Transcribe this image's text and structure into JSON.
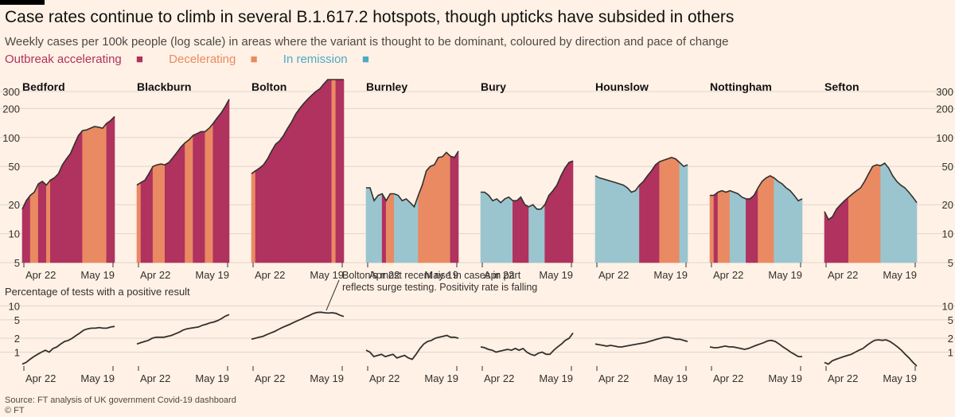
{
  "title": "Case rates continue to climb in several B.1.617.2 hotspots, though upticks have subsided in others",
  "subtitle": "Weekly cases per 100k people (log scale) in areas where the variant is thought to be dominant, coloured by direction and pace of change",
  "legend": [
    {
      "label": "Outbreak accelerating",
      "marker": "■",
      "color": "#b0325f"
    },
    {
      "label": "Decelerating",
      "marker": "■",
      "color": "#e98a63"
    },
    {
      "label": "In remission",
      "marker": "■",
      "color": "#4fa9c8"
    }
  ],
  "colors": {
    "accel": "#b0325f",
    "decel": "#e98a63",
    "remit": "#9ac5cf",
    "line": "#33302e",
    "text": "#33302e"
  },
  "lower_title": "Percentage of tests with a positive result",
  "annotation": [
    "Bolton’s most recent rise in cases in part",
    "reflects surge testing. Positivity rate is falling"
  ],
  "source": "Source: FT analysis of UK government Covid-19 dashboard",
  "credit": "© FT",
  "chart_data": [
    {
      "type": "area",
      "log_scale": true,
      "ylim": [
        5,
        400
      ],
      "yticks": [
        5,
        10,
        20,
        50,
        100,
        200,
        300
      ],
      "x_tick_labels": [
        "Apr 22",
        "May 19"
      ],
      "segments_legend": {
        "A": "Outbreak accelerating",
        "D": "Decelerating",
        "R": "In remission"
      },
      "series": [
        {
          "name": "Bedford",
          "values": [
            18,
            22,
            25,
            27,
            33,
            35,
            32,
            36,
            38,
            42,
            52,
            60,
            68,
            85,
            105,
            118,
            120,
            125,
            130,
            128,
            125,
            140,
            150,
            165
          ],
          "state": "AADDAADAAAAAAAADDDDDDAAA"
        },
        {
          "name": "Blackburn",
          "values": [
            32,
            34,
            36,
            42,
            50,
            52,
            53,
            52,
            55,
            62,
            70,
            80,
            88,
            95,
            105,
            110,
            115,
            115,
            125,
            140,
            160,
            180,
            210,
            250
          ],
          "state": "DAAADDDAAAAADDAAADDAAAAA"
        },
        {
          "name": "Bolton",
          "values": [
            42,
            45,
            48,
            52,
            60,
            72,
            85,
            92,
            105,
            125,
            145,
            175,
            200,
            225,
            250,
            275,
            300,
            320,
            360,
            400,
            400,
            400,
            400,
            400
          ],
          "state": "DAAAAAAAAAAAAAAAAAAADAAD"
        },
        {
          "name": "Burnley",
          "values": [
            30,
            30,
            22,
            25,
            26,
            22,
            26,
            26,
            25,
            22,
            23,
            21,
            19,
            25,
            32,
            45,
            50,
            52,
            62,
            63,
            70,
            64,
            62,
            72
          ],
          "state": "RRRRADDRRRRRRDDDDDDDDAAA"
        },
        {
          "name": "Bury",
          "values": [
            27,
            27,
            25,
            22,
            23,
            21,
            23,
            24,
            22,
            22,
            24,
            20,
            19,
            20,
            18,
            18,
            20,
            25,
            28,
            32,
            40,
            48,
            55,
            57
          ],
          "state": "RRRRRRRRAAAARRRRAAAAAAAD"
        },
        {
          "name": "Hounslow",
          "values": [
            40,
            38,
            37,
            36,
            35,
            34,
            33,
            32,
            30,
            27,
            28,
            32,
            35,
            40,
            45,
            52,
            56,
            58,
            60,
            62,
            60,
            55,
            50,
            52
          ],
          "state": "RRRRRRRRRRRAAAAADDDDDRRR"
        },
        {
          "name": "Nottingham",
          "values": [
            25,
            25,
            27,
            28,
            27,
            28,
            27,
            26,
            24,
            23,
            23,
            25,
            30,
            35,
            38,
            40,
            38,
            35,
            33,
            30,
            28,
            25,
            22,
            23
          ],
          "state": "DADDDRRRRAAADDDDRRRRRRRR"
        },
        {
          "name": "Sefton",
          "values": [
            17,
            14,
            15,
            18,
            20,
            22,
            24,
            26,
            28,
            30,
            35,
            42,
            50,
            52,
            51,
            54,
            48,
            40,
            35,
            32,
            30,
            27,
            24,
            21
          ],
          "state": "AAAAAADDDDDDDDRRRRRRRRRR"
        }
      ]
    },
    {
      "type": "line",
      "log_scale": true,
      "ylim": [
        0.5,
        11
      ],
      "yticks": [
        1,
        2,
        5,
        10
      ],
      "x_tick_labels": [
        "Apr 22",
        "May 19"
      ],
      "series": [
        {
          "name": "Bedford",
          "values": [
            0.55,
            0.6,
            0.7,
            0.8,
            0.9,
            1.0,
            1.1,
            1.0,
            1.2,
            1.3,
            1.5,
            1.7,
            1.8,
            2.0,
            2.3,
            2.6,
            3.0,
            3.2,
            3.3,
            3.3,
            3.4,
            3.3,
            3.3,
            3.5,
            3.6
          ]
        },
        {
          "name": "Blackburn",
          "values": [
            1.5,
            1.6,
            1.7,
            1.8,
            2.0,
            2.1,
            2.1,
            2.1,
            2.2,
            2.3,
            2.5,
            2.7,
            3.0,
            3.2,
            3.3,
            3.4,
            3.5,
            3.8,
            4.0,
            4.3,
            4.5,
            4.8,
            5.3,
            6.0,
            6.5
          ]
        },
        {
          "name": "Bolton",
          "values": [
            1.9,
            2.0,
            2.1,
            2.2,
            2.4,
            2.6,
            2.8,
            3.1,
            3.4,
            3.7,
            4.0,
            4.4,
            4.8,
            5.2,
            5.7,
            6.2,
            6.8,
            7.2,
            7.3,
            7.1,
            7.0,
            7.1,
            6.9,
            6.3,
            5.9
          ]
        },
        {
          "name": "Burnley",
          "values": [
            1.1,
            1.0,
            0.8,
            0.85,
            0.9,
            0.8,
            0.85,
            0.9,
            0.75,
            0.8,
            0.85,
            0.75,
            0.7,
            0.9,
            1.2,
            1.5,
            1.7,
            1.8,
            2.0,
            2.1,
            2.2,
            2.3,
            2.1,
            2.1,
            2.0
          ]
        },
        {
          "name": "Bury",
          "values": [
            1.3,
            1.25,
            1.15,
            1.1,
            1.0,
            1.05,
            1.1,
            1.15,
            1.1,
            1.2,
            1.1,
            1.2,
            1.0,
            0.9,
            0.85,
            0.95,
            1.0,
            0.9,
            0.9,
            1.1,
            1.3,
            1.5,
            1.8,
            2.0,
            2.6
          ]
        },
        {
          "name": "Hounslow",
          "values": [
            1.5,
            1.45,
            1.4,
            1.35,
            1.4,
            1.35,
            1.3,
            1.3,
            1.35,
            1.4,
            1.45,
            1.5,
            1.55,
            1.6,
            1.7,
            1.8,
            1.9,
            2.0,
            2.1,
            2.1,
            2.0,
            1.9,
            1.9,
            1.8,
            1.7
          ]
        },
        {
          "name": "Nottingham",
          "values": [
            1.3,
            1.25,
            1.25,
            1.3,
            1.35,
            1.3,
            1.3,
            1.25,
            1.2,
            1.15,
            1.2,
            1.3,
            1.4,
            1.5,
            1.6,
            1.75,
            1.8,
            1.7,
            1.5,
            1.3,
            1.15,
            1.0,
            0.9,
            0.8,
            0.8
          ]
        },
        {
          "name": "Sefton",
          "values": [
            0.6,
            0.55,
            0.65,
            0.7,
            0.75,
            0.8,
            0.85,
            0.9,
            1.0,
            1.1,
            1.2,
            1.4,
            1.6,
            1.8,
            1.85,
            1.8,
            1.85,
            1.7,
            1.5,
            1.3,
            1.1,
            0.9,
            0.75,
            0.6,
            0.5
          ]
        }
      ]
    }
  ]
}
